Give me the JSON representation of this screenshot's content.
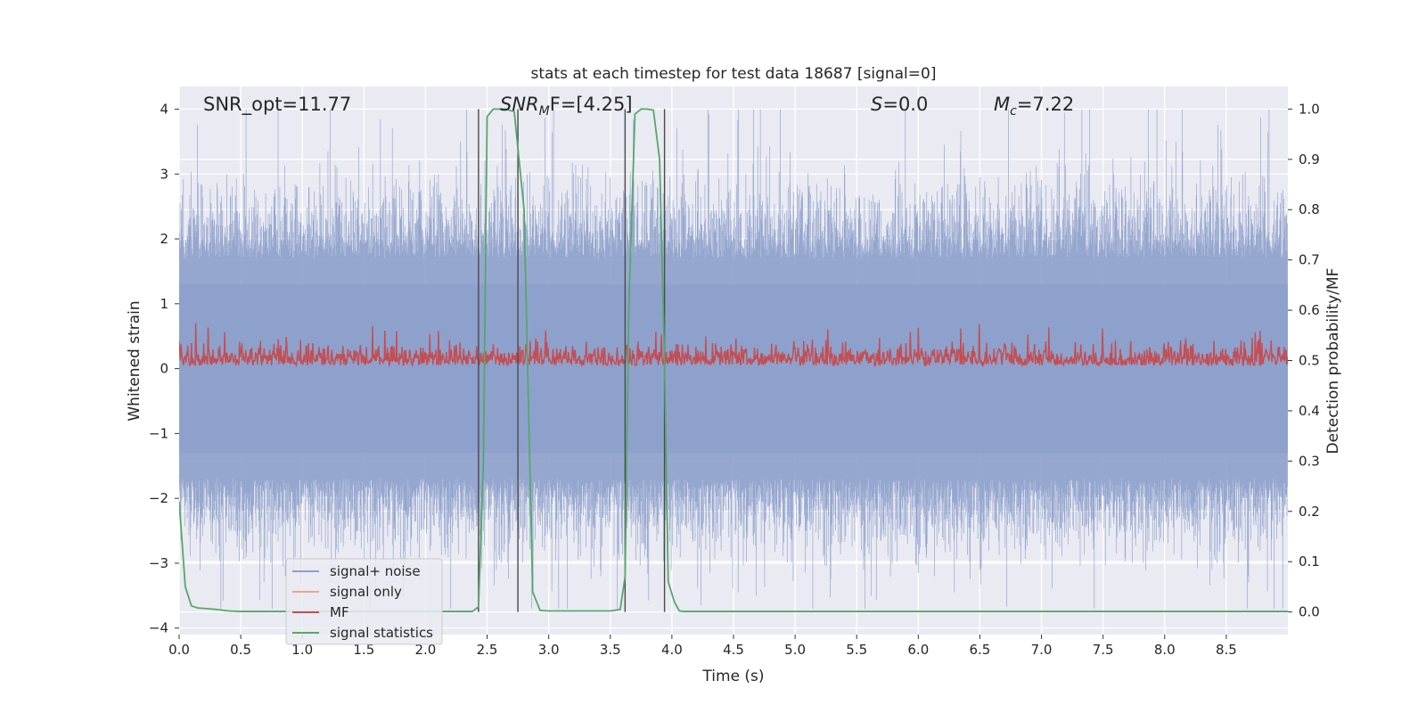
{
  "chart_data": {
    "type": "line",
    "title": "stats at each timestep for test data 18687 [signal=0]",
    "xlabel": "Time (s)",
    "ylabel_left": "Whitened strain",
    "ylabel_right": "Detection probability/MF",
    "xlim": [
      0.0,
      9.0
    ],
    "ylim_left": [
      -4.1,
      4.35
    ],
    "ylim_right": [
      -0.045,
      1.045
    ],
    "x_ticks": [
      "0.0",
      "0.5",
      "1.0",
      "1.5",
      "2.0",
      "2.5",
      "3.0",
      "3.5",
      "4.0",
      "4.5",
      "5.0",
      "5.5",
      "6.0",
      "6.5",
      "7.0",
      "7.5",
      "8.0",
      "8.5"
    ],
    "y_left_ticks": [
      "4",
      "3",
      "2",
      "1",
      "0",
      "−1",
      "−2",
      "−3",
      "−4"
    ],
    "y_right_ticks": [
      "1.0",
      "0.9",
      "0.8",
      "0.7",
      "0.6",
      "0.5",
      "0.4",
      "0.3",
      "0.2",
      "0.1",
      "0.0"
    ],
    "annotations": {
      "snr_opt": "SNR_opt=11.77",
      "snr_mf_sym": "SNR",
      "snr_mf_sub": "M",
      "snr_mf_tail": "F=[4.25]",
      "s_sym": "S",
      "s_val": "=0.0",
      "mc_sym": "M",
      "mc_sub": "c",
      "mc_val": "=7.22"
    },
    "legend": {
      "position": "lower-left",
      "items": [
        {
          "label": "signal+ noise",
          "color": "#8da0cb"
        },
        {
          "label": "signal only",
          "color": "#e8a58c"
        },
        {
          "label": "MF",
          "color": "#c44e52"
        },
        {
          "label": "signal statistics",
          "color": "#55a868"
        }
      ]
    },
    "series": [
      {
        "name": "signal statistics",
        "axis": "right",
        "color": "#55a868",
        "x": [
          0.0,
          0.05,
          0.1,
          0.15,
          0.2,
          0.3,
          0.4,
          0.5,
          1.0,
          1.5,
          2.0,
          2.3,
          2.38,
          2.43,
          2.47,
          2.5,
          2.55,
          2.6,
          2.65,
          2.72,
          2.8,
          2.87,
          2.93,
          3.0,
          3.2,
          3.5,
          3.58,
          3.62,
          3.65,
          3.7,
          3.75,
          3.8,
          3.85,
          3.9,
          3.94,
          3.97,
          4.02,
          4.06,
          4.1,
          4.5,
          5.0,
          6.0,
          7.0,
          8.0,
          9.0
        ],
        "y": [
          0.22,
          0.05,
          0.012,
          0.008,
          0.007,
          0.005,
          0.002,
          0.001,
          0.001,
          0.001,
          0.001,
          0.001,
          0.001,
          0.01,
          0.3,
          0.985,
          1.0,
          1.0,
          1.0,
          0.995,
          0.8,
          0.04,
          0.003,
          0.002,
          0.002,
          0.002,
          0.005,
          0.07,
          0.6,
          0.99,
          1.0,
          1.0,
          0.998,
          0.9,
          0.5,
          0.06,
          0.02,
          0.002,
          0.001,
          0.001,
          0.001,
          0.001,
          0.001,
          0.001,
          0.001
        ]
      }
    ],
    "vertical_markers_s": [
      2.43,
      2.75,
      3.62,
      3.94
    ],
    "noise_model": {
      "series": "signal+ noise",
      "axis": "left",
      "color": "#8da0cb",
      "center": -0.15,
      "upper_envelope": 1.7,
      "lower_envelope": -1.7,
      "max": 4.0,
      "min": -3.7
    },
    "mf_model": {
      "series": "MF",
      "axis": "right",
      "color": "#c44e52",
      "low": 0.49,
      "mean": 0.52,
      "peak": 0.575
    }
  }
}
